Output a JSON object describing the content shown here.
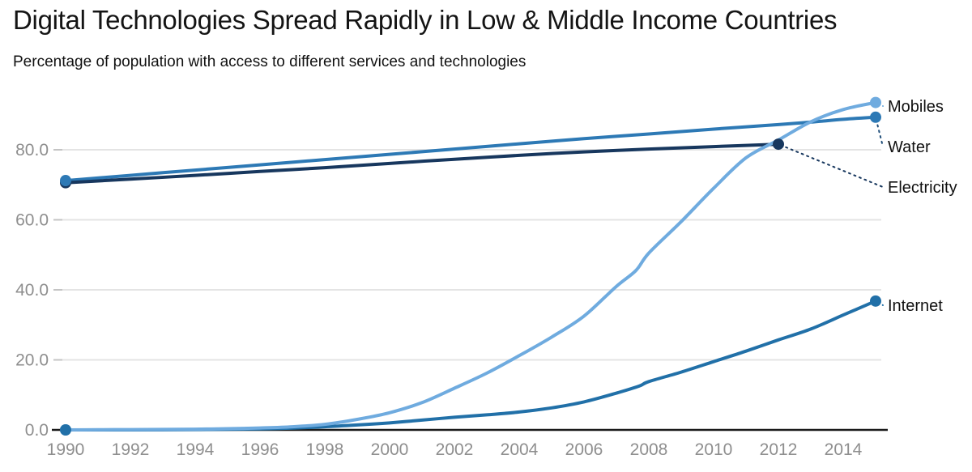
{
  "header": {
    "title": "Digital Technologies Spread Rapidly in Low & Middle Income Countries",
    "subtitle": "Percentage of population with access to different services and technologies"
  },
  "chart_data": {
    "type": "line",
    "title": "Digital Technologies Spread Rapidly in Low & Middle Income Countries",
    "subtitle": "Percentage of population with access to different services and technologies",
    "xlabel": "",
    "ylabel": "Percentage of population",
    "x_axis": {
      "ticks": [
        1990,
        1992,
        1994,
        1996,
        1998,
        2000,
        2002,
        2004,
        2006,
        2008,
        2010,
        2012,
        2014
      ],
      "range": [
        1990,
        2015.4
      ]
    },
    "y_axis": {
      "ticks": [
        0,
        20,
        40,
        60,
        80
      ],
      "tick_labels": [
        "0.0",
        "20.0",
        "40.0",
        "60.0",
        "80.0"
      ],
      "range": [
        0,
        100
      ],
      "gridlines": true
    },
    "colors": {
      "axis": "#1a1a1a",
      "tick_label": "#8e8e8e",
      "gridline": "#e4e4e4",
      "tick_mark": "#c4c4c4",
      "label_text": "#111111",
      "background": "#ffffff"
    },
    "series": [
      {
        "id": "water",
        "label": "Water",
        "color": "#2d79b5",
        "leader_color": "#1f4e79",
        "points": [
          [
            1990,
            71.2
          ],
          [
            1992,
            72.7
          ],
          [
            1994,
            74.2
          ],
          [
            1996,
            75.7
          ],
          [
            1998,
            77.2
          ],
          [
            2000,
            78.7
          ],
          [
            2002,
            80.2
          ],
          [
            2004,
            81.7
          ],
          [
            2006,
            83.2
          ],
          [
            2008,
            84.5
          ],
          [
            2010,
            85.9
          ],
          [
            2012,
            87.2
          ],
          [
            2013,
            87.9
          ],
          [
            2014,
            88.7
          ],
          [
            2015,
            89.3
          ]
        ]
      },
      {
        "id": "electricity",
        "label": "Electricity",
        "color": "#17375e",
        "leader_color": "#17375e",
        "points": [
          [
            1990,
            70.6
          ],
          [
            1992,
            71.6
          ],
          [
            1994,
            72.7
          ],
          [
            1996,
            73.8
          ],
          [
            1998,
            74.9
          ],
          [
            2000,
            76.1
          ],
          [
            2002,
            77.3
          ],
          [
            2004,
            78.4
          ],
          [
            2006,
            79.4
          ],
          [
            2008,
            80.2
          ],
          [
            2010,
            80.9
          ],
          [
            2012,
            81.6
          ]
        ]
      },
      {
        "id": "internet",
        "label": "Internet",
        "color": "#2170a8",
        "leader_color": "#2170a8",
        "points": [
          [
            1990,
            0
          ],
          [
            1992,
            0
          ],
          [
            1994,
            0.1
          ],
          [
            1996,
            0.3
          ],
          [
            1997,
            0.5
          ],
          [
            1998,
            0.9
          ],
          [
            1999,
            1.4
          ],
          [
            2000,
            2.0
          ],
          [
            2001,
            2.8
          ],
          [
            2002,
            3.6
          ],
          [
            2003,
            4.3
          ],
          [
            2004,
            5.1
          ],
          [
            2005,
            6.3
          ],
          [
            2006,
            8.0
          ],
          [
            2007,
            10.5
          ],
          [
            2007.7,
            12.5
          ],
          [
            2008,
            13.8
          ],
          [
            2009,
            16.5
          ],
          [
            2010,
            19.5
          ],
          [
            2011,
            22.5
          ],
          [
            2012,
            25.7
          ],
          [
            2013,
            28.8
          ],
          [
            2014,
            32.8
          ],
          [
            2015,
            36.8
          ]
        ]
      },
      {
        "id": "mobiles",
        "label": "Mobiles",
        "color": "#6fabdf",
        "leader_color": "#6fabdf",
        "points": [
          [
            1990,
            0
          ],
          [
            1991,
            0.05
          ],
          [
            1992,
            0.1
          ],
          [
            1993,
            0.15
          ],
          [
            1994,
            0.2
          ],
          [
            1995,
            0.35
          ],
          [
            1996,
            0.55
          ],
          [
            1997,
            0.9
          ],
          [
            1998,
            1.6
          ],
          [
            1999,
            3.0
          ],
          [
            2000,
            4.9
          ],
          [
            2001,
            7.8
          ],
          [
            2002,
            11.9
          ],
          [
            2003,
            16.2
          ],
          [
            2004,
            21.2
          ],
          [
            2005,
            26.5
          ],
          [
            2006,
            32.5
          ],
          [
            2007,
            41.0
          ],
          [
            2007.6,
            45.5
          ],
          [
            2008,
            50.5
          ],
          [
            2009,
            59.5
          ],
          [
            2010,
            69.0
          ],
          [
            2011,
            77.7
          ],
          [
            2012,
            82.8
          ],
          [
            2013,
            88.0
          ],
          [
            2014,
            91.5
          ],
          [
            2015,
            93.5
          ]
        ]
      }
    ]
  }
}
